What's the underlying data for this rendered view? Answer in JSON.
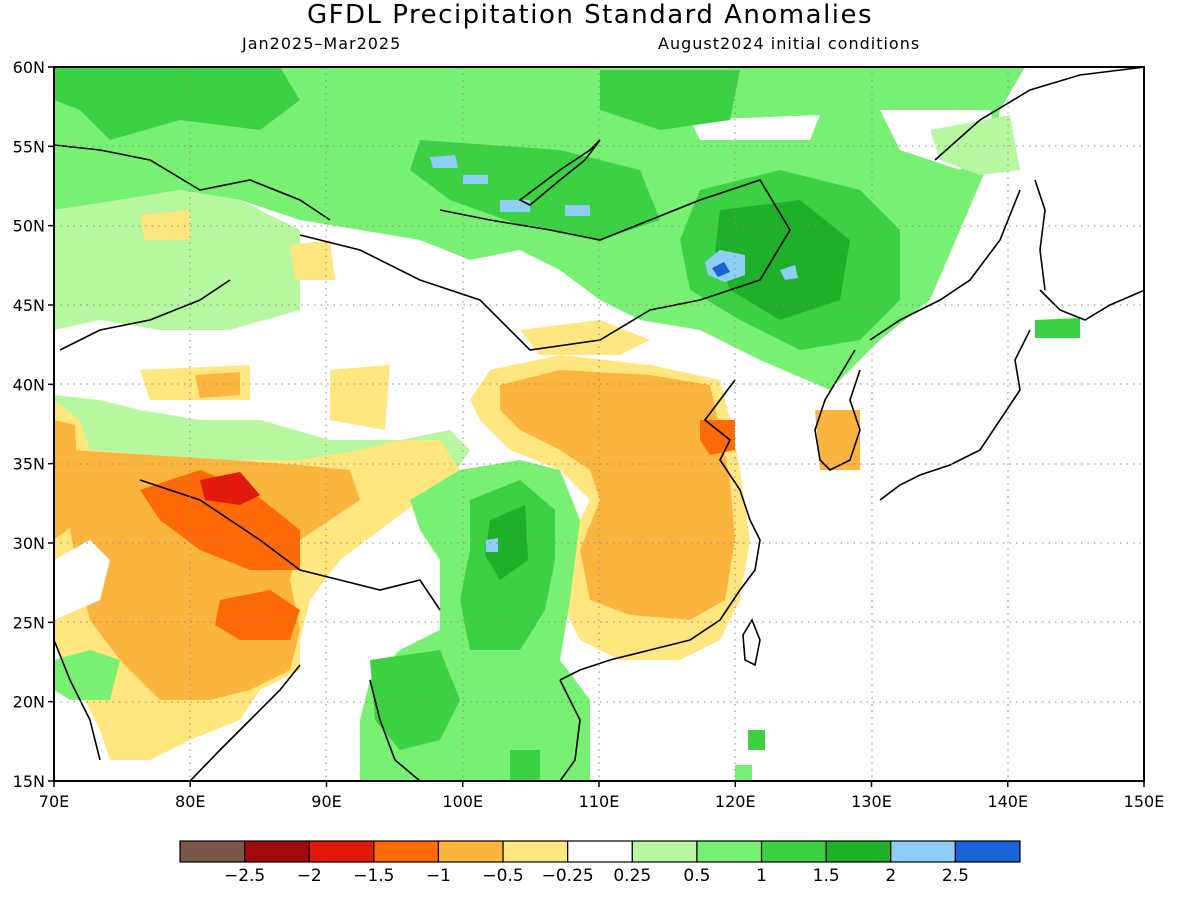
{
  "title": "GFDL Precipitation Standard Anomalies",
  "subtitle_left": "Jan2025–Mar2025",
  "subtitle_right": "August2024 initial conditions",
  "map": {
    "lon_range": [
      70,
      150
    ],
    "lat_range": [
      15,
      60
    ],
    "lon_ticks": [
      "70E",
      "80E",
      "90E",
      "100E",
      "110E",
      "120E",
      "130E",
      "140E",
      "150E"
    ],
    "lat_ticks": [
      "15N",
      "20N",
      "25N",
      "30N",
      "35N",
      "40N",
      "45N",
      "50N",
      "55N",
      "60N"
    ],
    "gridlines": "dotted"
  },
  "colorbar": {
    "colors": [
      "#7a5548",
      "#a10a0a",
      "#e11a0d",
      "#ff6a08",
      "#fbb53f",
      "#ffe67f",
      "#ffffff",
      "#b7f7a0",
      "#78f074",
      "#3cd143",
      "#1fb02a",
      "#8ecdf5",
      "#1a63d6"
    ],
    "labels": [
      "−2.5",
      "−2",
      "−1.5",
      "−1",
      "−0.5",
      "−0.25",
      "0.25",
      "0.5",
      "1",
      "1.5",
      "2",
      "2.5"
    ]
  }
}
